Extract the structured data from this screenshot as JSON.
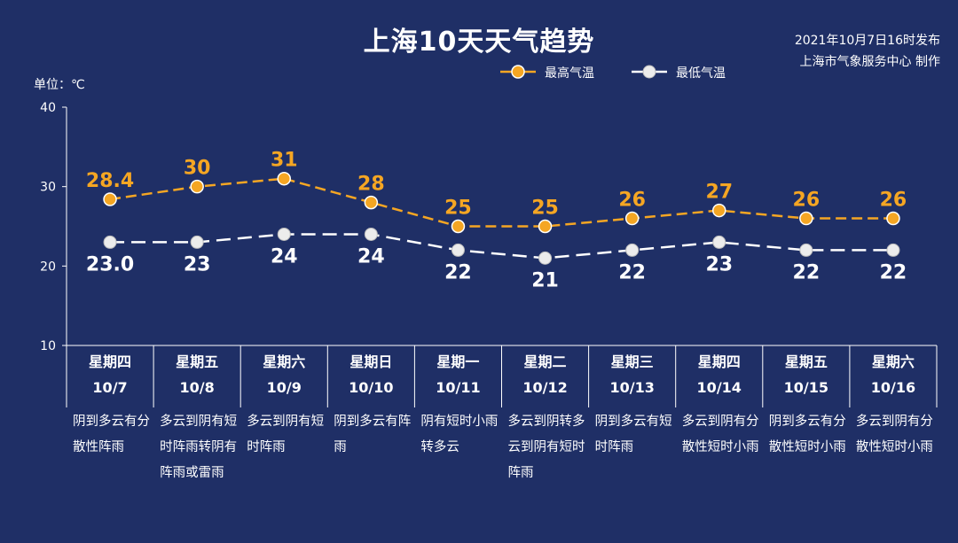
{
  "title": "上海10天天气趋势",
  "publish": {
    "line1": "2021年10月7日16时发布",
    "line2": "上海市气象服务中心 制作"
  },
  "unit_label": "单位：℃",
  "legend": {
    "high": "最高气温",
    "low": "最低气温"
  },
  "colors": {
    "background": "#1f2f66",
    "high": "#f5a623",
    "low": "#ffffff"
  },
  "chart_data": {
    "type": "line",
    "title": "上海10天天气趋势",
    "ylabel": "单位：℃",
    "ylim": [
      10,
      40
    ],
    "yticks": [
      10,
      20,
      30,
      40
    ],
    "categories": [
      "10/7",
      "10/8",
      "10/9",
      "10/10",
      "10/11",
      "10/12",
      "10/13",
      "10/14",
      "10/15",
      "10/16"
    ],
    "series": [
      {
        "name": "最高气温",
        "values": [
          28.4,
          30,
          31,
          28,
          25,
          25,
          26,
          27,
          26,
          26
        ],
        "labels": [
          "28.4",
          "30",
          "31",
          "28",
          "25",
          "25",
          "26",
          "27",
          "26",
          "26"
        ]
      },
      {
        "name": "最低气温",
        "values": [
          23.0,
          23,
          24,
          24,
          22,
          21,
          22,
          23,
          22,
          22
        ],
        "labels": [
          "23.0",
          "23",
          "24",
          "24",
          "22",
          "21",
          "22",
          "23",
          "22",
          "22"
        ]
      }
    ],
    "legend_position": "top-right",
    "grid": false
  },
  "days": [
    {
      "weekday": "星期四",
      "date": "10/7",
      "desc": "阴到多云有分散性阵雨"
    },
    {
      "weekday": "星期五",
      "date": "10/8",
      "desc": "多云到阴有短时阵雨转阴有阵雨或雷雨"
    },
    {
      "weekday": "星期六",
      "date": "10/9",
      "desc": "多云到阴有短时阵雨"
    },
    {
      "weekday": "星期日",
      "date": "10/10",
      "desc": "阴到多云有阵雨"
    },
    {
      "weekday": "星期一",
      "date": "10/11",
      "desc": "阴有短时小雨转多云"
    },
    {
      "weekday": "星期二",
      "date": "10/12",
      "desc": "多云到阴转多云到阴有短时阵雨"
    },
    {
      "weekday": "星期三",
      "date": "10/13",
      "desc": "阴到多云有短时阵雨"
    },
    {
      "weekday": "星期四",
      "date": "10/14",
      "desc": "多云到阴有分散性短时小雨"
    },
    {
      "weekday": "星期五",
      "date": "10/15",
      "desc": "阴到多云有分散性短时小雨"
    },
    {
      "weekday": "星期六",
      "date": "10/16",
      "desc": "多云到阴有分散性短时小雨"
    }
  ]
}
